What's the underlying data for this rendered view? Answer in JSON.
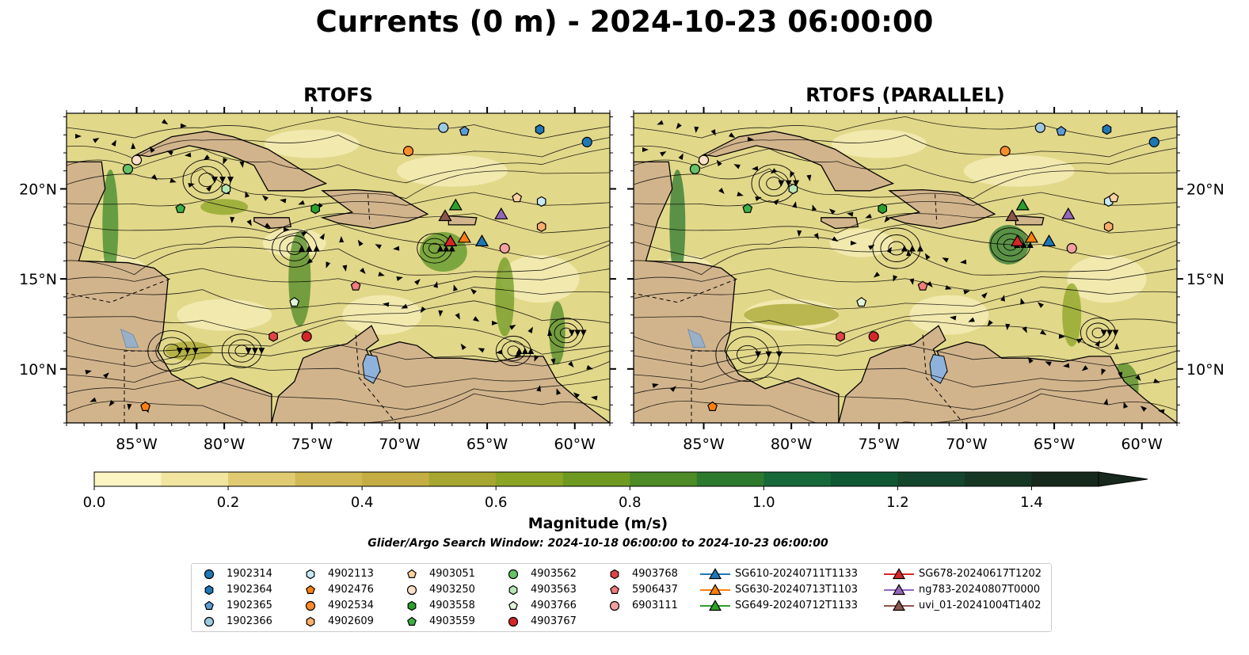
{
  "title": "Currents (0 m) - 2024-10-23 06:00:00",
  "panels": [
    {
      "title": "RTOFS",
      "x_ticks": [
        "85°W",
        "80°W",
        "75°W",
        "70°W",
        "65°W",
        "60°W"
      ],
      "y_ticks": [
        "20°N",
        "15°N",
        "10°N"
      ],
      "y_label_side": "left"
    },
    {
      "title": "RTOFS (PARALLEL)",
      "x_ticks": [
        "85°W",
        "80°W",
        "75°W",
        "70°W",
        "65°W",
        "60°W"
      ],
      "y_ticks": [
        "20°N",
        "15°N",
        "10°N"
      ],
      "y_label_side": "right"
    }
  ],
  "map_extent": {
    "lon": [
      -89,
      -58
    ],
    "lat": [
      7,
      24.2
    ]
  },
  "colorbar": {
    "label": "Magnitude (m/s)",
    "ticks": [
      "0.0",
      "0.2",
      "0.4",
      "0.6",
      "0.8",
      "1.0",
      "1.2",
      "1.4"
    ],
    "range": [
      0,
      1.5
    ],
    "extend": "max",
    "colors": [
      "#fbf4c3",
      "#f2e5a0",
      "#e0cb72",
      "#d0b854",
      "#c4ae43",
      "#a7a630",
      "#8ba424",
      "#6e9a22",
      "#4e8a25",
      "#2d7a2f",
      "#17693a",
      "#0f5833",
      "#13462c",
      "#163624",
      "#17281c"
    ]
  },
  "search_window": "Glider/Argo Search Window: 2024-10-18 06:00:00 to 2024-10-23 06:00:00",
  "legend": {
    "columns": [
      [
        {
          "label": "1902314",
          "shape": "circle",
          "color": "#1f77b4"
        },
        {
          "label": "1902364",
          "shape": "hexagon",
          "color": "#1f77b4"
        },
        {
          "label": "1902365",
          "shape": "pentagon",
          "color": "#5b9bd5"
        },
        {
          "label": "1902366",
          "shape": "circle",
          "color": "#9ecae1"
        }
      ],
      [
        {
          "label": "4902113",
          "shape": "hexagon",
          "color": "#c6e9f5"
        },
        {
          "label": "4902476",
          "shape": "pentagon",
          "color": "#ff7f0e"
        },
        {
          "label": "4902534",
          "shape": "circle",
          "color": "#ff8c2a"
        },
        {
          "label": "4902609",
          "shape": "hexagon",
          "color": "#fdae6b"
        }
      ],
      [
        {
          "label": "4903051",
          "shape": "pentagon",
          "color": "#fdd0a2"
        },
        {
          "label": "4903250",
          "shape": "circle",
          "color": "#fde0c8"
        },
        {
          "label": "4903558",
          "shape": "hexagon",
          "color": "#2ca02c"
        },
        {
          "label": "4903559",
          "shape": "pentagon",
          "color": "#3cb043"
        }
      ],
      [
        {
          "label": "4903562",
          "shape": "circle",
          "color": "#66c266"
        },
        {
          "label": "4903563",
          "shape": "hexagon",
          "color": "#b5e6b5"
        },
        {
          "label": "4903766",
          "shape": "pentagon",
          "color": "#e0f5d8"
        },
        {
          "label": "4903767",
          "shape": "circle",
          "color": "#d62728"
        }
      ],
      [
        {
          "label": "4903768",
          "shape": "hexagon",
          "color": "#e04545"
        },
        {
          "label": "5906437",
          "shape": "pentagon",
          "color": "#f07c7c"
        },
        {
          "label": "6903111",
          "shape": "circle",
          "color": "#f4a0a0"
        }
      ],
      [
        {
          "label": "SG610-20240711T1133",
          "shape": "triangle",
          "color": "#1f77b4"
        },
        {
          "label": "SG630-20240713T1103",
          "shape": "triangle",
          "color": "#ff7f0e"
        },
        {
          "label": "SG649-20240712T1133",
          "shape": "triangle",
          "color": "#2ca02c"
        }
      ],
      [
        {
          "label": "SG678-20240617T1202",
          "shape": "triangle",
          "color": "#d62728"
        },
        {
          "label": "ng783-20240807T0000",
          "shape": "triangle",
          "color": "#9467bd"
        },
        {
          "label": "uvi_01-20241004T1402",
          "shape": "triangle",
          "color": "#8c564b"
        }
      ]
    ]
  },
  "markers_panel1": [
    {
      "id": "1902314",
      "lon": -59.3,
      "lat": 22.6
    },
    {
      "id": "1902364",
      "lon": -62.0,
      "lat": 23.3
    },
    {
      "id": "1902365",
      "lon": -66.3,
      "lat": 23.2
    },
    {
      "id": "1902366",
      "lon": -67.5,
      "lat": 23.4
    },
    {
      "id": "4902113",
      "lon": -61.9,
      "lat": 19.3
    },
    {
      "id": "4902476",
      "lon": -84.5,
      "lat": 7.9
    },
    {
      "id": "4902534",
      "lon": -69.5,
      "lat": 22.1
    },
    {
      "id": "4902609",
      "lon": -61.9,
      "lat": 17.9
    },
    {
      "id": "4903051",
      "lon": -63.3,
      "lat": 19.5
    },
    {
      "id": "4903250",
      "lon": -85.0,
      "lat": 21.6
    },
    {
      "id": "4903558",
      "lon": -74.8,
      "lat": 18.9
    },
    {
      "id": "4903559",
      "lon": -82.5,
      "lat": 18.9
    },
    {
      "id": "4903562",
      "lon": -85.5,
      "lat": 21.1
    },
    {
      "id": "4903563",
      "lon": -79.9,
      "lat": 20.0
    },
    {
      "id": "4903766",
      "lon": -76.0,
      "lat": 13.7
    },
    {
      "id": "4903767",
      "lon": -75.3,
      "lat": 11.8
    },
    {
      "id": "4903768",
      "lon": -77.2,
      "lat": 11.8
    },
    {
      "id": "5906437",
      "lon": -72.5,
      "lat": 14.6
    },
    {
      "id": "6903111",
      "lon": -64.0,
      "lat": 16.7
    },
    {
      "id": "SG610-20240711T1133",
      "lon": -65.3,
      "lat": 17.1
    },
    {
      "id": "SG630-20240713T1103",
      "lon": -66.3,
      "lat": 17.3
    },
    {
      "id": "SG649-20240712T1133",
      "lon": -66.8,
      "lat": 19.1
    },
    {
      "id": "SG678-20240617T1202",
      "lon": -67.1,
      "lat": 17.1
    },
    {
      "id": "ng783-20240807T0000",
      "lon": -64.2,
      "lat": 18.6
    },
    {
      "id": "uvi_01-20241004T1402",
      "lon": -67.4,
      "lat": 18.5
    }
  ],
  "markers_panel2": [
    {
      "id": "1902314",
      "lon": -59.3,
      "lat": 22.6
    },
    {
      "id": "1902364",
      "lon": -62.0,
      "lat": 23.3
    },
    {
      "id": "1902365",
      "lon": -64.6,
      "lat": 23.2
    },
    {
      "id": "1902366",
      "lon": -65.8,
      "lat": 23.4
    },
    {
      "id": "4902113",
      "lon": -61.9,
      "lat": 19.3
    },
    {
      "id": "4902476",
      "lon": -84.5,
      "lat": 7.9
    },
    {
      "id": "4902534",
      "lon": -67.8,
      "lat": 22.1
    },
    {
      "id": "4902609",
      "lon": -61.9,
      "lat": 17.9
    },
    {
      "id": "4903051",
      "lon": -61.6,
      "lat": 19.5
    },
    {
      "id": "4903250",
      "lon": -85.0,
      "lat": 21.6
    },
    {
      "id": "4903558",
      "lon": -74.8,
      "lat": 18.9
    },
    {
      "id": "4903559",
      "lon": -82.5,
      "lat": 18.9
    },
    {
      "id": "4903562",
      "lon": -85.5,
      "lat": 21.1
    },
    {
      "id": "4903563",
      "lon": -79.9,
      "lat": 20.0
    },
    {
      "id": "4903766",
      "lon": -76.0,
      "lat": 13.7
    },
    {
      "id": "4903767",
      "lon": -75.3,
      "lat": 11.8
    },
    {
      "id": "4903768",
      "lon": -77.2,
      "lat": 11.8
    },
    {
      "id": "5906437",
      "lon": -72.5,
      "lat": 14.6
    },
    {
      "id": "6903111",
      "lon": -64.0,
      "lat": 16.7
    },
    {
      "id": "SG610-20240711T1133",
      "lon": -65.3,
      "lat": 17.1
    },
    {
      "id": "SG630-20240713T1103",
      "lon": -66.3,
      "lat": 17.3
    },
    {
      "id": "SG649-20240712T1133",
      "lon": -66.8,
      "lat": 19.1
    },
    {
      "id": "SG678-20240617T1202",
      "lon": -67.1,
      "lat": 17.1
    },
    {
      "id": "ng783-20240807T0000",
      "lon": -64.2,
      "lat": 18.6
    },
    {
      "id": "uvi_01-20241004T1402",
      "lon": -67.4,
      "lat": 18.5
    }
  ]
}
